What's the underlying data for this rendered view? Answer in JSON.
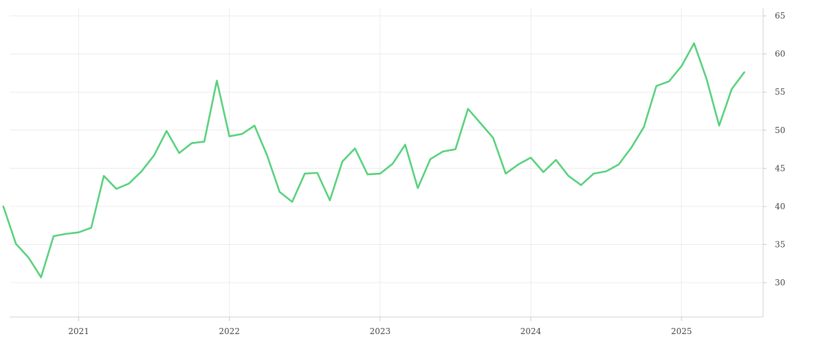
{
  "chart_data": {
    "type": "line",
    "title": "",
    "xlabel": "",
    "ylabel": "",
    "x_tick_labels": [
      "2021",
      "2022",
      "2023",
      "2024",
      "2025"
    ],
    "y_tick_labels": [
      "30",
      "35",
      "40",
      "45",
      "50",
      "55",
      "60",
      "65"
    ],
    "ylim": [
      25.5,
      66
    ],
    "xlim": [
      "2020-07",
      "2025-07"
    ],
    "grid": true,
    "legend": "none",
    "y_axis_side": "right",
    "colors": {
      "line": "#57d17c"
    },
    "series": [
      {
        "x": [
          "2020-07",
          "2020-08",
          "2020-09",
          "2020-10",
          "2020-11",
          "2020-12",
          "2021-01",
          "2021-02",
          "2021-03",
          "2021-04",
          "2021-05",
          "2021-06",
          "2021-07",
          "2021-08",
          "2021-09",
          "2021-10",
          "2021-11",
          "2021-12",
          "2022-01",
          "2022-02",
          "2022-03",
          "2022-04",
          "2022-05",
          "2022-06",
          "2022-07",
          "2022-08",
          "2022-09",
          "2022-10",
          "2022-11",
          "2022-12",
          "2023-01",
          "2023-02",
          "2023-03",
          "2023-04",
          "2023-05",
          "2023-06",
          "2023-07",
          "2023-08",
          "2023-09",
          "2023-10",
          "2023-11",
          "2023-12",
          "2024-01",
          "2024-02",
          "2024-03",
          "2024-04",
          "2024-05",
          "2024-06",
          "2024-07",
          "2024-08",
          "2024-09",
          "2024-10",
          "2024-11",
          "2024-12",
          "2025-01",
          "2025-02",
          "2025-03",
          "2025-04",
          "2025-05",
          "2025-06"
        ],
        "values": [
          40.0,
          35.1,
          33.3,
          30.7,
          36.1,
          36.4,
          36.6,
          37.2,
          44.0,
          42.3,
          43.0,
          44.6,
          46.7,
          49.9,
          47.0,
          48.3,
          48.5,
          56.5,
          49.2,
          49.5,
          50.6,
          46.7,
          41.9,
          40.6,
          44.3,
          44.4,
          40.8,
          45.9,
          47.6,
          44.2,
          44.3,
          45.6,
          48.1,
          42.4,
          46.2,
          47.2,
          47.5,
          52.8,
          50.9,
          49.0,
          44.3,
          45.5,
          46.4,
          44.5,
          46.1,
          44.0,
          42.8,
          44.3,
          44.6,
          45.5,
          47.7,
          50.4,
          55.8,
          56.4,
          58.4,
          61.4,
          56.7,
          50.6,
          55.4,
          57.6
        ]
      }
    ]
  }
}
